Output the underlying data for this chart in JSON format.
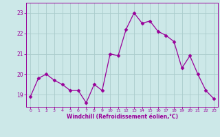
{
  "x": [
    0,
    1,
    2,
    3,
    4,
    5,
    6,
    7,
    8,
    9,
    10,
    11,
    12,
    13,
    14,
    15,
    16,
    17,
    18,
    19,
    20,
    21,
    22,
    23
  ],
  "y": [
    18.9,
    19.8,
    20.0,
    19.7,
    19.5,
    19.2,
    19.2,
    18.6,
    19.5,
    19.2,
    21.0,
    20.9,
    22.2,
    23.0,
    22.5,
    22.6,
    22.1,
    21.9,
    21.6,
    20.3,
    20.9,
    20.0,
    19.2,
    18.8
  ],
  "line_color": "#990099",
  "marker": "D",
  "marker_size": 2.5,
  "bg_color": "#cce8e8",
  "grid_color": "#aacccc",
  "xlabel": "Windchill (Refroidissement éolien,°C)",
  "xlabel_color": "#990099",
  "tick_color": "#990099",
  "yticks": [
    19,
    20,
    21,
    22,
    23
  ],
  "xticks": [
    0,
    1,
    2,
    3,
    4,
    5,
    6,
    7,
    8,
    9,
    10,
    11,
    12,
    13,
    14,
    15,
    16,
    17,
    18,
    19,
    20,
    21,
    22,
    23
  ],
  "ylim": [
    18.4,
    23.5
  ],
  "xlim": [
    -0.5,
    23.5
  ]
}
